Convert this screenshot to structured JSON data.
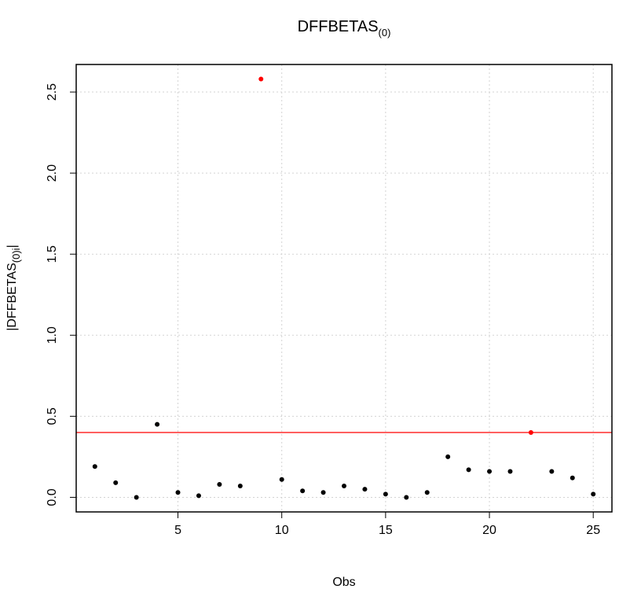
{
  "chart_data": {
    "type": "scatter",
    "title": {
      "main": "DFFBETAS",
      "subscript": "(0)"
    },
    "xlabel": "Obs",
    "ylabel": {
      "main": "|DFFBETAS",
      "subscript": "(0)i",
      "suffix": "|"
    },
    "xlim": [
      0.1,
      25.9
    ],
    "ylim": [
      -0.09,
      2.67
    ],
    "x_ticks": [
      5,
      10,
      15,
      20,
      25
    ],
    "x_tick_labels": [
      "5",
      "10",
      "15",
      "20",
      "25"
    ],
    "y_ticks": [
      0.0,
      0.5,
      1.0,
      1.5,
      2.0,
      2.5
    ],
    "y_tick_labels": [
      "0.0",
      "0.5",
      "1.0",
      "1.5",
      "2.0",
      "2.5"
    ],
    "grid": true,
    "threshold": {
      "value": 0.4,
      "color": "#ff0000"
    },
    "point_color": "#000000",
    "highlight_color": "#ff0000",
    "points": [
      {
        "x": 1,
        "y": 0.19,
        "highlight": false
      },
      {
        "x": 2,
        "y": 0.09,
        "highlight": false
      },
      {
        "x": 3,
        "y": 0.0,
        "highlight": false
      },
      {
        "x": 4,
        "y": 0.45,
        "highlight": false
      },
      {
        "x": 5,
        "y": 0.03,
        "highlight": false
      },
      {
        "x": 6,
        "y": 0.01,
        "highlight": false
      },
      {
        "x": 7,
        "y": 0.08,
        "highlight": false
      },
      {
        "x": 8,
        "y": 0.07,
        "highlight": false
      },
      {
        "x": 9,
        "y": 2.58,
        "highlight": true
      },
      {
        "x": 10,
        "y": 0.11,
        "highlight": false
      },
      {
        "x": 11,
        "y": 0.04,
        "highlight": false
      },
      {
        "x": 12,
        "y": 0.03,
        "highlight": false
      },
      {
        "x": 13,
        "y": 0.07,
        "highlight": false
      },
      {
        "x": 14,
        "y": 0.05,
        "highlight": false
      },
      {
        "x": 15,
        "y": 0.02,
        "highlight": false
      },
      {
        "x": 16,
        "y": 0.0,
        "highlight": false
      },
      {
        "x": 17,
        "y": 0.03,
        "highlight": false
      },
      {
        "x": 18,
        "y": 0.25,
        "highlight": false
      },
      {
        "x": 19,
        "y": 0.17,
        "highlight": false
      },
      {
        "x": 20,
        "y": 0.16,
        "highlight": false
      },
      {
        "x": 21,
        "y": 0.16,
        "highlight": false
      },
      {
        "x": 22,
        "y": 0.4,
        "highlight": true
      },
      {
        "x": 23,
        "y": 0.16,
        "highlight": false
      },
      {
        "x": 24,
        "y": 0.12,
        "highlight": false
      },
      {
        "x": 25,
        "y": 0.02,
        "highlight": false
      }
    ]
  }
}
